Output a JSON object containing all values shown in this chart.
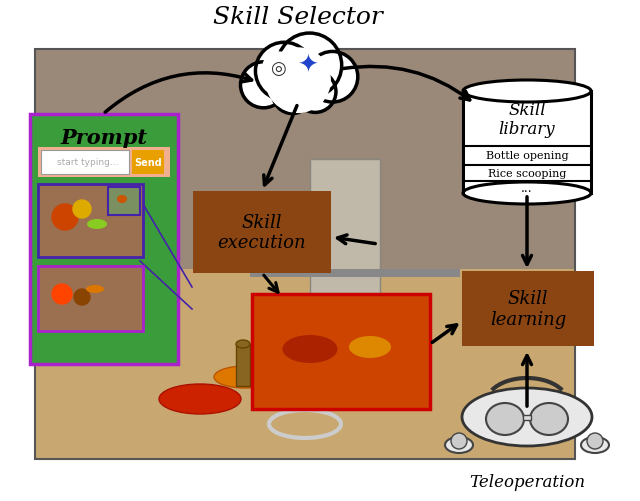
{
  "title": "Skill Selector",
  "bg_color": "#ffffff",
  "brown_color": "#8B4513",
  "green_color": "#3a9c3a",
  "purple_border": "#aa22cc",
  "blue_border": "#4422aa",
  "skill_execution_label": "Skill\nexecution",
  "skill_learning_label": "Skill\nlearning",
  "skill_library_label": "Skill\nlibrary",
  "skill_items": [
    "Bottle opening",
    "Rice scooping",
    "..."
  ],
  "prompt_label": "Prompt",
  "teleoperation_label": "Teleoperation",
  "send_color": "#e8a000",
  "input_color": "#f5c8a0",
  "arrow_color": "#111111",
  "figsize": [
    6.4,
    5.02
  ],
  "dpi": 100
}
